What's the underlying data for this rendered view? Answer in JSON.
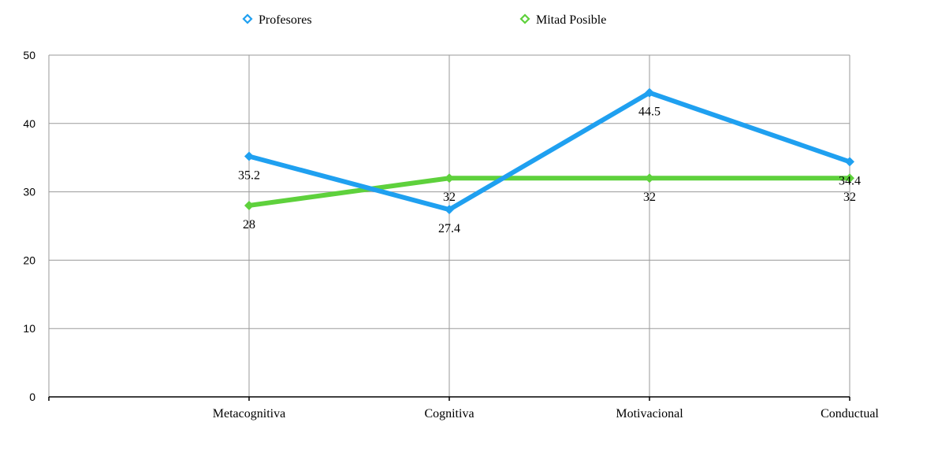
{
  "chart_data": {
    "type": "line",
    "categories": [
      "Metacognitiva",
      "Cognitiva",
      "Motivacional",
      "Conductual"
    ],
    "series": [
      {
        "name": "Profesores",
        "values": [
          35.2,
          27.4,
          44.5,
          34.4
        ],
        "color": "#1fa0f0",
        "labels": [
          "35.2",
          "27.4",
          "44.5",
          "34.4"
        ]
      },
      {
        "name": "Mitad Posible",
        "values": [
          28,
          32,
          32,
          32
        ],
        "color": "#5ed13c",
        "labels": [
          "28",
          "32",
          "32",
          "32"
        ]
      }
    ],
    "ylim": [
      0,
      50
    ],
    "yticks": [
      0,
      10,
      20,
      30,
      40,
      50
    ],
    "ytick_labels": [
      "0",
      "10",
      "20",
      "30",
      "40",
      "50"
    ],
    "grid": true,
    "legend": "top-center",
    "marker": "diamond"
  }
}
